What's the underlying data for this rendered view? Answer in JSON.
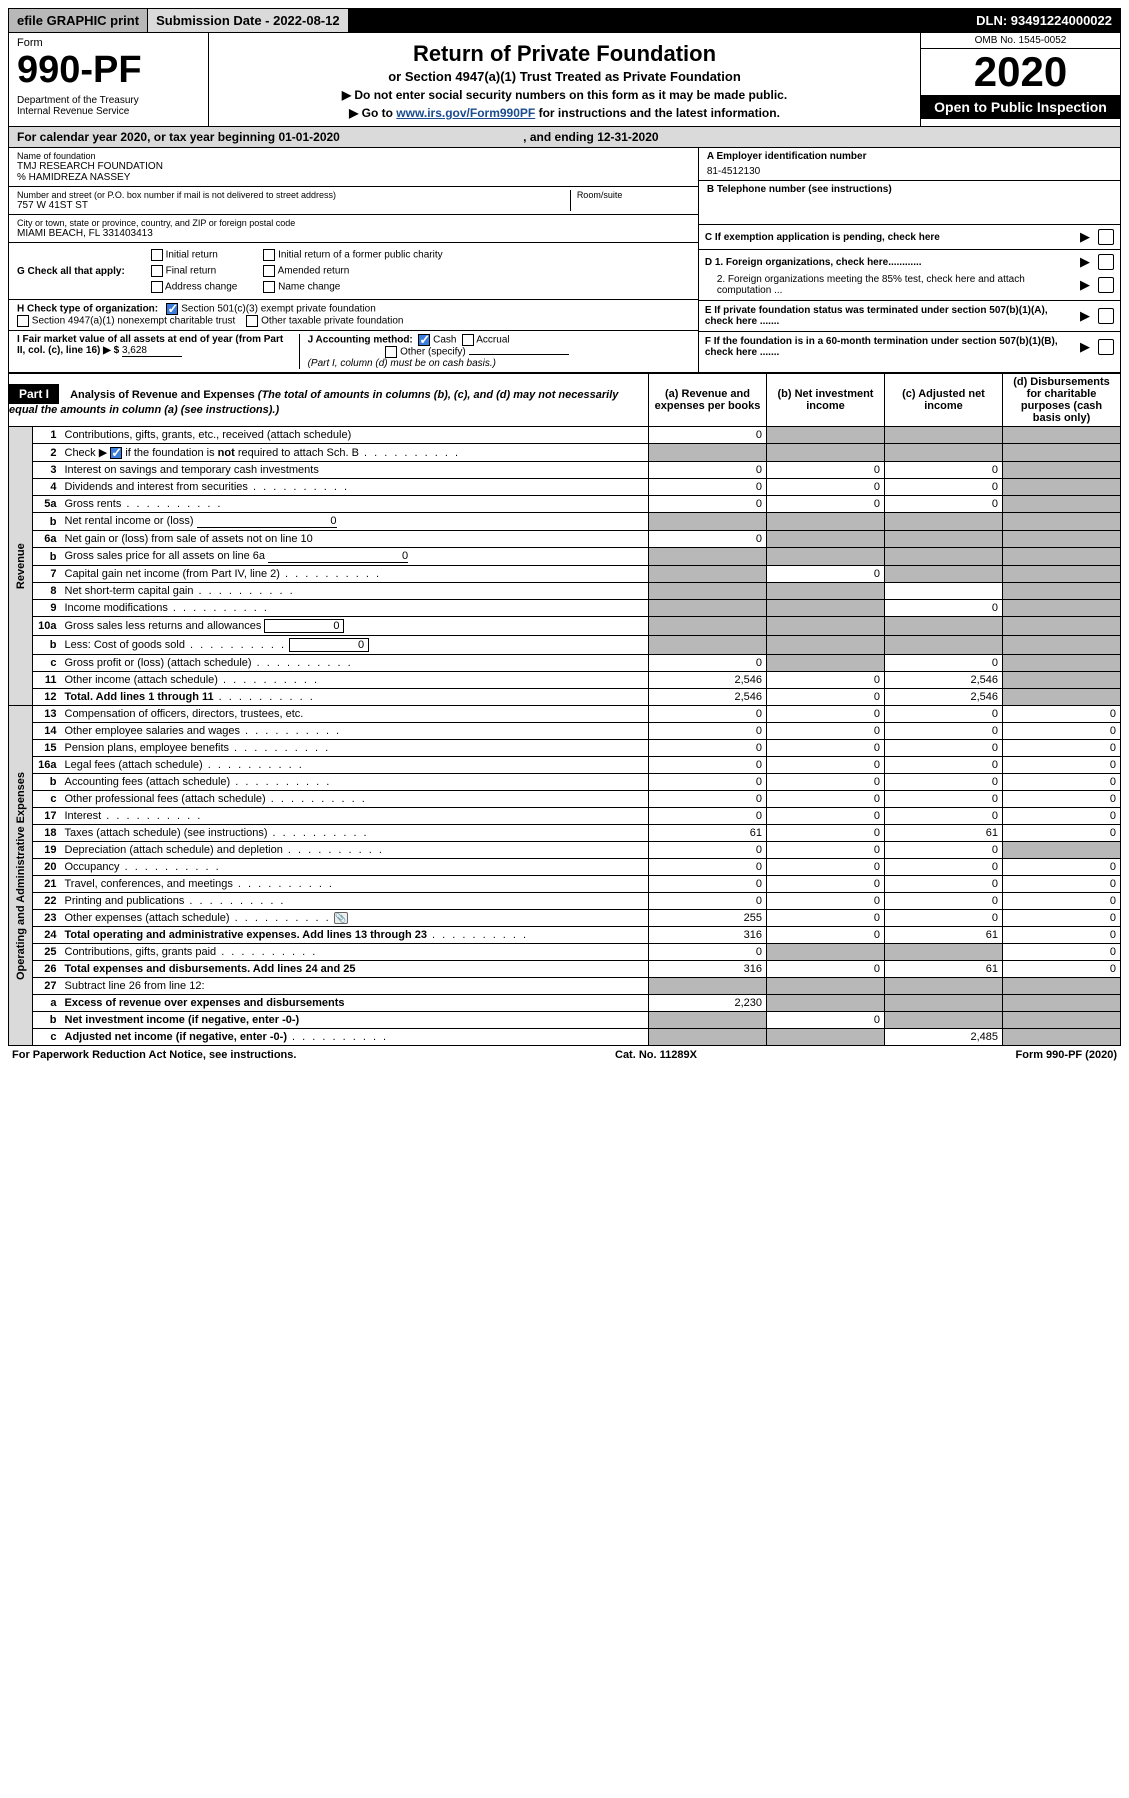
{
  "topbar": {
    "efile": "efile GRAPHIC print",
    "subdate_label": "Submission Date - 2022-08-12",
    "dln": "DLN: 93491224000022"
  },
  "header": {
    "form_label": "Form",
    "form_number": "990-PF",
    "dept": "Department of the Treasury",
    "irs": "Internal Revenue Service",
    "title": "Return of Private Foundation",
    "subtitle": "or Section 4947(a)(1) Trust Treated as Private Foundation",
    "instr1": "▶ Do not enter social security numbers on this form as it may be made public.",
    "instr2_pre": "▶ Go to ",
    "instr2_link": "www.irs.gov/Form990PF",
    "instr2_post": " for instructions and the latest information.",
    "omb": "OMB No. 1545-0052",
    "year": "2020",
    "open_public": "Open to Public Inspection"
  },
  "cal_year": {
    "pre": "For calendar year 2020, or tax year beginning ",
    "begin": "01-01-2020",
    "mid": " , and ending ",
    "end": "12-31-2020"
  },
  "entity": {
    "name_lbl": "Name of foundation",
    "name": "TMJ RESEARCH FOUNDATION",
    "care_of": "% HAMIDREZA NASSEY",
    "addr_lbl": "Number and street (or P.O. box number if mail is not delivered to street address)",
    "room_lbl": "Room/suite",
    "addr": "757 W 41ST ST",
    "city_lbl": "City or town, state or province, country, and ZIP or foreign postal code",
    "city": "MIAMI BEACH, FL  331403413"
  },
  "right_info": {
    "a_lbl": "A Employer identification number",
    "ein": "81-4512130",
    "b_lbl": "B Telephone number (see instructions)",
    "c_lbl": "C If exemption application is pending, check here",
    "d1": "D 1. Foreign organizations, check here............",
    "d2": "2. Foreign organizations meeting the 85% test, check here and attach computation ...",
    "e": "E  If private foundation status was terminated under section 507(b)(1)(A), check here .......",
    "f": "F  If the foundation is in a 60-month termination under section 507(b)(1)(B), check here .......",
    "arrow": "▶"
  },
  "section_g": {
    "label": "G Check all that apply:",
    "initial": "Initial return",
    "final": "Final return",
    "addr_change": "Address change",
    "initial_former": "Initial return of a former public charity",
    "amended": "Amended return",
    "name_change": "Name change"
  },
  "section_h": {
    "label": "H Check type of organization:",
    "c3": "Section 501(c)(3) exempt private foundation",
    "s4947": "Section 4947(a)(1) nonexempt charitable trust",
    "other_tax": "Other taxable private foundation"
  },
  "section_i": {
    "label": "I Fair market value of all assets at end of year (from Part II, col. (c), line 16) ▶ $",
    "value": "3,628"
  },
  "section_j": {
    "label": "J Accounting method:",
    "cash": "Cash",
    "accrual": "Accrual",
    "other": "Other (specify)",
    "note": "(Part I, column (d) must be on cash basis.)"
  },
  "part1": {
    "label": "Part I",
    "title": "Analysis of Revenue and Expenses",
    "title_note": " (The total of amounts in columns (b), (c), and (d) may not necessarily equal the amounts in column (a) (see instructions).)",
    "col_a": "(a)  Revenue and expenses per books",
    "col_b": "(b)  Net investment income",
    "col_c": "(c)  Adjusted net income",
    "col_d": "(d)  Disbursements for charitable purposes (cash basis only)",
    "revenue_label": "Revenue",
    "expenses_label": "Operating and Administrative Expenses"
  },
  "rows": [
    {
      "n": "1",
      "label": "Contributions, gifts, grants, etc., received (attach schedule)",
      "a": "0",
      "b": "",
      "c": "",
      "d": "",
      "b_sh": true,
      "c_sh": true,
      "d_sh": true
    },
    {
      "n": "2",
      "label": "Check ▶ ☑ if the foundation is not required to attach Sch. B",
      "dots": true,
      "a": "",
      "b": "",
      "c": "",
      "d": "",
      "a_sh": true,
      "b_sh": true,
      "c_sh": true,
      "d_sh": true,
      "checked": true
    },
    {
      "n": "3",
      "label": "Interest on savings and temporary cash investments",
      "a": "0",
      "b": "0",
      "c": "0",
      "d": "",
      "d_sh": true
    },
    {
      "n": "4",
      "label": "Dividends and interest from securities",
      "dots": true,
      "a": "0",
      "b": "0",
      "c": "0",
      "d": "",
      "d_sh": true
    },
    {
      "n": "5a",
      "label": "Gross rents",
      "dots": true,
      "a": "0",
      "b": "0",
      "c": "0",
      "d": "",
      "d_sh": true
    },
    {
      "n": "b",
      "label": "Net rental income or (loss)",
      "inline": "0",
      "a": "",
      "b": "",
      "c": "",
      "d": "",
      "a_sh": true,
      "b_sh": true,
      "c_sh": true,
      "d_sh": true
    },
    {
      "n": "6a",
      "label": "Net gain or (loss) from sale of assets not on line 10",
      "a": "0",
      "b": "",
      "c": "",
      "d": "",
      "b_sh": true,
      "c_sh": true,
      "d_sh": true
    },
    {
      "n": "b",
      "label": "Gross sales price for all assets on line 6a",
      "inline": "0",
      "a": "",
      "b": "",
      "c": "",
      "d": "",
      "a_sh": true,
      "b_sh": true,
      "c_sh": true,
      "d_sh": true
    },
    {
      "n": "7",
      "label": "Capital gain net income (from Part IV, line 2)",
      "dots": true,
      "a": "",
      "b": "0",
      "c": "",
      "d": "",
      "a_sh": true,
      "c_sh": true,
      "d_sh": true
    },
    {
      "n": "8",
      "label": "Net short-term capital gain",
      "dots": true,
      "a": "",
      "b": "",
      "c": "",
      "d": "",
      "a_sh": true,
      "b_sh": true,
      "d_sh": true
    },
    {
      "n": "9",
      "label": "Income modifications",
      "dots": true,
      "a": "",
      "b": "",
      "c": "0",
      "d": "",
      "a_sh": true,
      "b_sh": true,
      "d_sh": true
    },
    {
      "n": "10a",
      "label": "Gross sales less returns and allowances",
      "inline": "0",
      "a": "",
      "b": "",
      "c": "",
      "d": "",
      "a_sh": true,
      "b_sh": true,
      "c_sh": true,
      "d_sh": true,
      "box": true
    },
    {
      "n": "b",
      "label": "Less: Cost of goods sold",
      "dots": true,
      "inline": "0",
      "a": "",
      "b": "",
      "c": "",
      "d": "",
      "a_sh": true,
      "b_sh": true,
      "c_sh": true,
      "d_sh": true,
      "box": true
    },
    {
      "n": "c",
      "label": "Gross profit or (loss) (attach schedule)",
      "dots": true,
      "a": "0",
      "b": "",
      "c": "0",
      "d": "",
      "b_sh": true,
      "d_sh": true
    },
    {
      "n": "11",
      "label": "Other income (attach schedule)",
      "dots": true,
      "a": "2,546",
      "b": "0",
      "c": "2,546",
      "d": "",
      "d_sh": true
    },
    {
      "n": "12",
      "label": "Total. Add lines 1 through 11",
      "dots": true,
      "bold": true,
      "a": "2,546",
      "b": "0",
      "c": "2,546",
      "d": "",
      "d_sh": true
    }
  ],
  "exp_rows": [
    {
      "n": "13",
      "label": "Compensation of officers, directors, trustees, etc.",
      "a": "0",
      "b": "0",
      "c": "0",
      "d": "0"
    },
    {
      "n": "14",
      "label": "Other employee salaries and wages",
      "dots": true,
      "a": "0",
      "b": "0",
      "c": "0",
      "d": "0"
    },
    {
      "n": "15",
      "label": "Pension plans, employee benefits",
      "dots": true,
      "a": "0",
      "b": "0",
      "c": "0",
      "d": "0"
    },
    {
      "n": "16a",
      "label": "Legal fees (attach schedule)",
      "dots": true,
      "a": "0",
      "b": "0",
      "c": "0",
      "d": "0"
    },
    {
      "n": "b",
      "label": "Accounting fees (attach schedule)",
      "dots": true,
      "a": "0",
      "b": "0",
      "c": "0",
      "d": "0"
    },
    {
      "n": "c",
      "label": "Other professional fees (attach schedule)",
      "dots": true,
      "a": "0",
      "b": "0",
      "c": "0",
      "d": "0"
    },
    {
      "n": "17",
      "label": "Interest",
      "dots": true,
      "a": "0",
      "b": "0",
      "c": "0",
      "d": "0"
    },
    {
      "n": "18",
      "label": "Taxes (attach schedule) (see instructions)",
      "dots": true,
      "a": "61",
      "b": "0",
      "c": "61",
      "d": "0"
    },
    {
      "n": "19",
      "label": "Depreciation (attach schedule) and depletion",
      "dots": true,
      "a": "0",
      "b": "0",
      "c": "0",
      "d": "",
      "d_sh": true
    },
    {
      "n": "20",
      "label": "Occupancy",
      "dots": true,
      "a": "0",
      "b": "0",
      "c": "0",
      "d": "0"
    },
    {
      "n": "21",
      "label": "Travel, conferences, and meetings",
      "dots": true,
      "a": "0",
      "b": "0",
      "c": "0",
      "d": "0"
    },
    {
      "n": "22",
      "label": "Printing and publications",
      "dots": true,
      "a": "0",
      "b": "0",
      "c": "0",
      "d": "0"
    },
    {
      "n": "23",
      "label": "Other expenses (attach schedule)",
      "dots": true,
      "icon": true,
      "a": "255",
      "b": "0",
      "c": "0",
      "d": "0"
    },
    {
      "n": "24",
      "label": "Total operating and administrative expenses. Add lines 13 through 23",
      "dots": true,
      "bold": true,
      "a": "316",
      "b": "0",
      "c": "61",
      "d": "0"
    },
    {
      "n": "25",
      "label": "Contributions, gifts, grants paid",
      "dots": true,
      "a": "0",
      "b": "",
      "c": "",
      "d": "0",
      "b_sh": true,
      "c_sh": true
    },
    {
      "n": "26",
      "label": "Total expenses and disbursements. Add lines 24 and 25",
      "bold": true,
      "a": "316",
      "b": "0",
      "c": "61",
      "d": "0"
    },
    {
      "n": "27",
      "label": "Subtract line 26 from line 12:",
      "a": "",
      "b": "",
      "c": "",
      "d": "",
      "a_sh": true,
      "b_sh": true,
      "c_sh": true,
      "d_sh": true
    },
    {
      "n": "a",
      "label": "Excess of revenue over expenses and disbursements",
      "bold": true,
      "a": "2,230",
      "b": "",
      "c": "",
      "d": "",
      "b_sh": true,
      "c_sh": true,
      "d_sh": true
    },
    {
      "n": "b",
      "label": "Net investment income (if negative, enter -0-)",
      "bold": true,
      "a": "",
      "b": "0",
      "c": "",
      "d": "",
      "a_sh": true,
      "c_sh": true,
      "d_sh": true
    },
    {
      "n": "c",
      "label": "Adjusted net income (if negative, enter -0-)",
      "dots": true,
      "bold": true,
      "a": "",
      "b": "",
      "c": "2,485",
      "d": "",
      "a_sh": true,
      "b_sh": true,
      "d_sh": true
    }
  ],
  "footer": {
    "left": "For Paperwork Reduction Act Notice, see instructions.",
    "mid": "Cat. No. 11289X",
    "right": "Form 990-PF (2020)"
  },
  "colors": {
    "header_gray": "#dadada",
    "shade": "#b8b8b8",
    "link": "#1a4b8f",
    "check_blue": "#3b7dd8"
  }
}
